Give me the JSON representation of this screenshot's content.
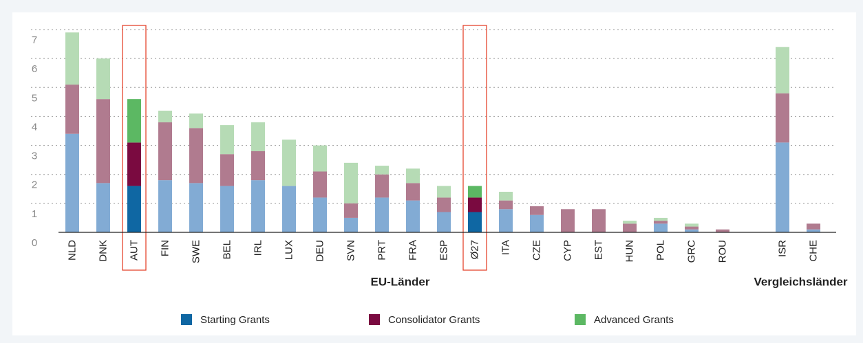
{
  "chart_data": {
    "type": "stacked_bar",
    "groups": [
      {
        "label": "EU-Länder",
        "categories": [
          "NLD",
          "DNK",
          "AUT",
          "FIN",
          "SWE",
          "BEL",
          "IRL",
          "LUX",
          "DEU",
          "SVN",
          "PRT",
          "FRA",
          "ESP",
          "Ø27",
          "ITA",
          "CZE",
          "CYP",
          "EST",
          "HUN",
          "POL",
          "GRC",
          "ROU"
        ]
      },
      {
        "label": "Vergleichsländer",
        "categories": [
          "ISR",
          "CHE"
        ]
      }
    ],
    "series": [
      {
        "name": "Starting Grants",
        "color": "#0f67a3",
        "muted_color": "#82abd4",
        "values": [
          3.4,
          1.7,
          1.6,
          1.8,
          1.7,
          1.6,
          1.8,
          1.6,
          1.2,
          0.5,
          1.2,
          1.1,
          0.7,
          0.7,
          0.8,
          0.6,
          0,
          0,
          0,
          0.3,
          0.1,
          0,
          3.1,
          0.1
        ]
      },
      {
        "name": "Consolidator Grants",
        "color": "#7a0a40",
        "muted_color": "#b07b8f",
        "values": [
          1.7,
          2.9,
          1.5,
          2.0,
          1.9,
          1.1,
          1.0,
          0,
          0.9,
          0.5,
          0.8,
          0.6,
          0.5,
          0.5,
          0.3,
          0.3,
          0.8,
          0.8,
          0.3,
          0.1,
          0.1,
          0.1,
          1.7,
          0.2
        ]
      },
      {
        "name": "Advanced Grants",
        "color": "#5cb863",
        "muted_color": "#b6dbb5",
        "values": [
          1.8,
          1.4,
          1.5,
          0.4,
          0.5,
          1.0,
          1.0,
          1.6,
          0.9,
          1.4,
          0.3,
          0.5,
          0.4,
          0.4,
          0.3,
          0,
          0,
          0,
          0.1,
          0.1,
          0.1,
          0,
          1.6,
          0
        ]
      }
    ],
    "highlighted": [
      "AUT",
      "Ø27"
    ],
    "highlight_color": "#e4452e",
    "ylim": [
      0,
      7
    ],
    "yticks": [
      0,
      1,
      2,
      3,
      4,
      5,
      6,
      7
    ],
    "grid": true
  }
}
